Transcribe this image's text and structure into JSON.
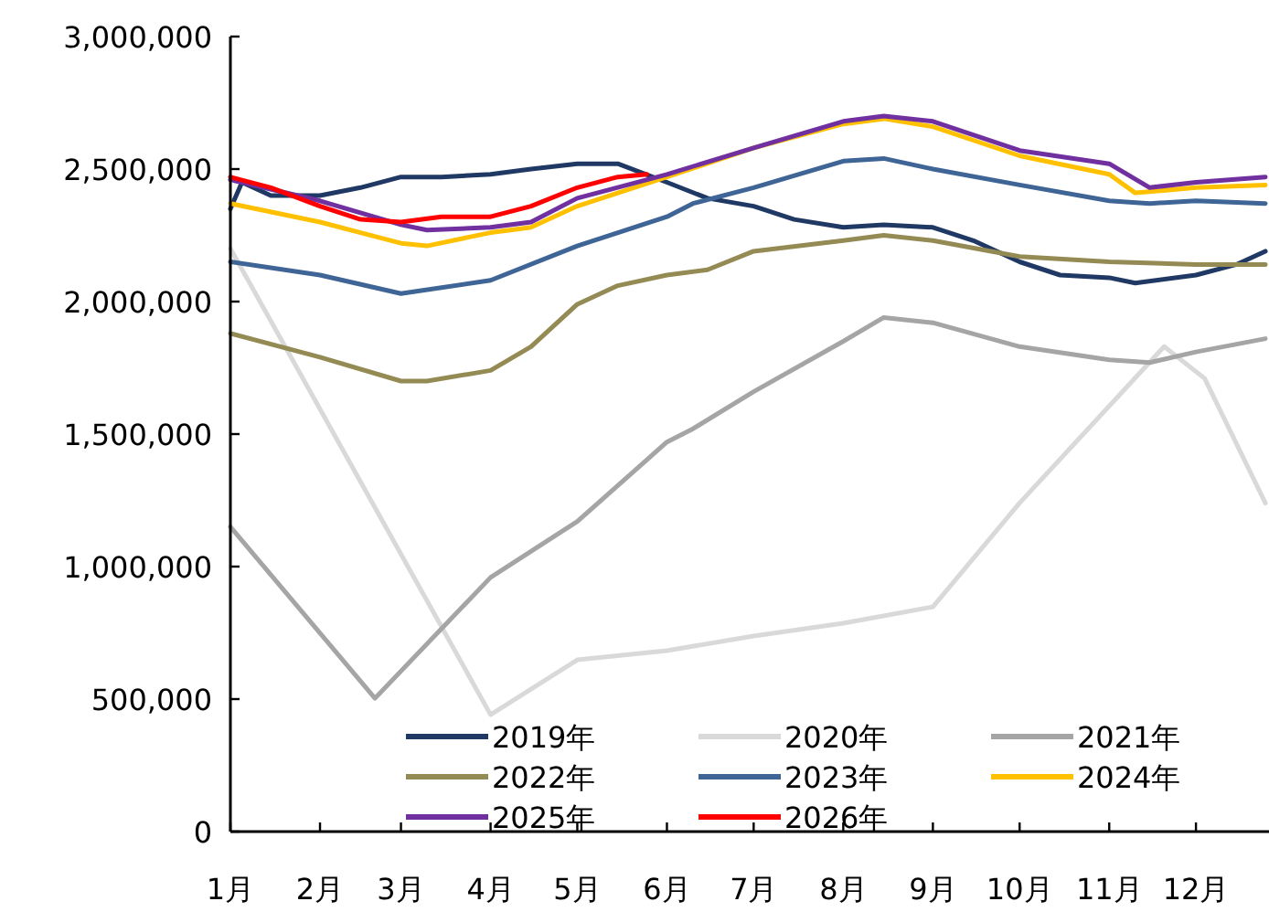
{
  "chart_data": {
    "type": "line",
    "xlim": [
      "--01-01",
      "--12-25"
    ],
    "xticks": [
      {
        "value": "--01-01",
        "label": "1月"
      },
      {
        "value": "--02-01",
        "label": "2月"
      },
      {
        "value": "--03-01",
        "label": "3月"
      },
      {
        "value": "--04-01",
        "label": "4月"
      },
      {
        "value": "--05-01",
        "label": "5月"
      },
      {
        "value": "--06-01",
        "label": "6月"
      },
      {
        "value": "--07-01",
        "label": "7月"
      },
      {
        "value": "--08-01",
        "label": "8月"
      },
      {
        "value": "--09-01",
        "label": "9月"
      },
      {
        "value": "--10-01",
        "label": "10月"
      },
      {
        "value": "--11-01",
        "label": "11月"
      },
      {
        "value": "--12-01",
        "label": "12月"
      }
    ],
    "ylim": [
      0,
      3000000
    ],
    "yticks": [
      0,
      {
        "value": 500000,
        "label": "500,000"
      },
      {
        "value": 1000000,
        "label": "1,000,000"
      },
      {
        "value": 1500000,
        "label": "1,500,000"
      },
      {
        "value": 2000000,
        "label": "2,000,000"
      },
      {
        "value": 2500000,
        "label": "2,500,000"
      },
      {
        "value": 3000000,
        "label": "3,000,000"
      }
    ],
    "grid": false,
    "legend": "bottom",
    "marker": "none",
    "line_style": "solid",
    "series": [
      {
        "name": "2019年",
        "color": "#1f3864",
        "x": [
          "--01-01",
          "--01-05",
          "--01-15",
          "--02-01",
          "--02-15",
          "--03-01",
          "--03-15",
          "--04-01",
          "--04-15",
          "--05-01",
          "--05-15",
          "--06-01",
          "--06-15",
          "--07-01",
          "--07-15",
          "--08-01",
          "--08-15",
          "--09-01",
          "--09-15",
          "--10-01",
          "--10-15",
          "--11-01",
          "--11-10",
          "--12-01",
          "--12-15",
          "--12-25"
        ],
        "values": [
          2350000,
          2450000,
          2400000,
          2400000,
          2430000,
          2470000,
          2470000,
          2480000,
          2500000,
          2520000,
          2520000,
          2450000,
          2390000,
          2360000,
          2310000,
          2280000,
          2290000,
          2280000,
          2230000,
          2150000,
          2100000,
          2090000,
          2070000,
          2100000,
          2140000,
          2190000
        ]
      },
      {
        "name": "2020年",
        "color": "#d9d9d9",
        "x": [
          "--01-01",
          "--04-01",
          "--05-01",
          "--06-01",
          "--07-01",
          "--08-01",
          "--09-01",
          "--10-01",
          "--11-20",
          "--12-04",
          "--12-25"
        ],
        "values": [
          2200000,
          441000,
          648000,
          683000,
          738000,
          786000,
          848000,
          1240000,
          1830000,
          1710000,
          1240000
        ]
      },
      {
        "name": "2021年",
        "color": "#a5a5a5",
        "x": [
          "--01-01",
          "--02-20",
          "--04-01",
          "--05-01",
          "--06-01",
          "--06-10",
          "--07-01",
          "--08-01",
          "--08-15",
          "--09-01",
          "--10-01",
          "--11-01",
          "--11-15",
          "--12-01",
          "--12-25"
        ],
        "values": [
          1150000,
          503000,
          959000,
          1170000,
          1470000,
          1520000,
          1660000,
          1850000,
          1940000,
          1920000,
          1830000,
          1780000,
          1770000,
          1810000,
          1860000
        ]
      },
      {
        "name": "2022年",
        "color": "#948a54",
        "x": [
          "--01-01",
          "--02-01",
          "--03-01",
          "--03-10",
          "--04-01",
          "--04-15",
          "--05-01",
          "--05-15",
          "--06-01",
          "--06-15",
          "--07-01",
          "--08-01",
          "--08-15",
          "--09-01",
          "--10-01",
          "--11-01",
          "--12-01",
          "--12-25"
        ],
        "values": [
          1880000,
          1790000,
          1700000,
          1700000,
          1740000,
          1830000,
          1990000,
          2060000,
          2100000,
          2120000,
          2190000,
          2230000,
          2250000,
          2230000,
          2170000,
          2150000,
          2140000,
          2140000
        ]
      },
      {
        "name": "2023年",
        "color": "#3e6596",
        "x": [
          "--01-01",
          "--02-01",
          "--03-01",
          "--04-01",
          "--05-01",
          "--06-01",
          "--06-10",
          "--07-01",
          "--08-01",
          "--08-15",
          "--09-01",
          "--10-01",
          "--11-01",
          "--11-15",
          "--12-01",
          "--12-25"
        ],
        "values": [
          2150000,
          2100000,
          2030000,
          2080000,
          2210000,
          2320000,
          2370000,
          2430000,
          2530000,
          2540000,
          2500000,
          2440000,
          2380000,
          2370000,
          2380000,
          2370000
        ]
      },
      {
        "name": "2024年",
        "color": "#ffc000",
        "x": [
          "--01-01",
          "--02-01",
          "--03-01",
          "--03-10",
          "--04-01",
          "--04-15",
          "--05-01",
          "--06-01",
          "--07-01",
          "--08-01",
          "--08-15",
          "--09-01",
          "--10-01",
          "--11-01",
          "--11-10",
          "--12-01",
          "--12-25"
        ],
        "values": [
          2370000,
          2300000,
          2220000,
          2210000,
          2260000,
          2280000,
          2360000,
          2470000,
          2580000,
          2670000,
          2690000,
          2660000,
          2550000,
          2480000,
          2410000,
          2430000,
          2440000
        ]
      },
      {
        "name": "2025年",
        "color": "#7030a0",
        "x": [
          "--01-01",
          "--02-01",
          "--03-01",
          "--03-10",
          "--04-01",
          "--04-15",
          "--05-01",
          "--06-01",
          "--07-01",
          "--08-01",
          "--08-15",
          "--09-01",
          "--10-01",
          "--11-01",
          "--11-15",
          "--12-01",
          "--12-25"
        ],
        "values": [
          2460000,
          2380000,
          2290000,
          2270000,
          2280000,
          2300000,
          2390000,
          2480000,
          2580000,
          2680000,
          2700000,
          2680000,
          2570000,
          2520000,
          2430000,
          2450000,
          2470000
        ]
      },
      {
        "name": "2026年",
        "color": "#ff0000",
        "x": [
          "--01-01",
          "--01-15",
          "--02-01",
          "--02-15",
          "--03-01",
          "--03-15",
          "--04-01",
          "--04-15",
          "--05-01",
          "--05-15",
          "--05-25"
        ],
        "values": [
          2470000,
          2430000,
          2360000,
          2310000,
          2300000,
          2320000,
          2320000,
          2360000,
          2430000,
          2470000,
          2480000
        ]
      }
    ]
  }
}
